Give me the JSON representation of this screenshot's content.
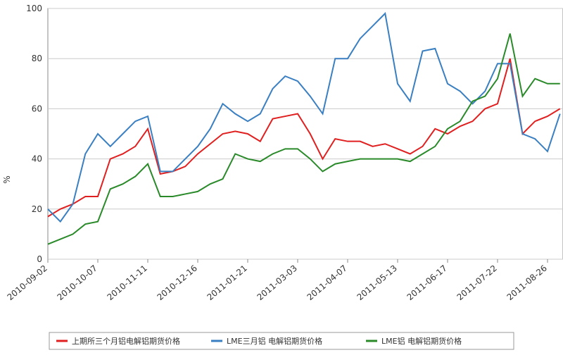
{
  "chart_data": {
    "type": "line",
    "y_label": "%",
    "categories": [
      "2010-09-02",
      null,
      null,
      null,
      "2010-10-07",
      null,
      null,
      null,
      "2010-11-11",
      null,
      null,
      null,
      "2010-12-16",
      null,
      null,
      null,
      "2011-01-21",
      null,
      null,
      null,
      "2011-03-03",
      null,
      null,
      null,
      "2011-04-07",
      null,
      null,
      null,
      "2011-05-13",
      null,
      null,
      null,
      "2011-06-17",
      null,
      null,
      null,
      "2011-07-22",
      null,
      null,
      null,
      "2011-08-26",
      null
    ],
    "series": [
      {
        "name": "上期所三个月铝电解铝期货价格",
        "color": "#e02020",
        "values": [
          17,
          20,
          22,
          25,
          25,
          40,
          42,
          45,
          52,
          34,
          35,
          37,
          42,
          46,
          50,
          51,
          50,
          47,
          56,
          57,
          58,
          50,
          40,
          48,
          47,
          47,
          45,
          46,
          44,
          42,
          45,
          52,
          50,
          53,
          55,
          60,
          62,
          80,
          50,
          55,
          57,
          60
        ]
      },
      {
        "name": "LME三月铝 电解铝期货价格",
        "color": "#3a7fc1",
        "values": [
          20,
          15,
          22,
          42,
          50,
          45,
          50,
          55,
          57,
          35,
          35,
          40,
          45,
          52,
          62,
          58,
          55,
          58,
          68,
          73,
          71,
          65,
          58,
          80,
          80,
          88,
          93,
          98,
          70,
          63,
          83,
          84,
          70,
          67,
          62,
          67,
          78,
          78,
          50,
          48,
          43,
          58
        ]
      },
      {
        "name": "LME铝 电解铝期货价格",
        "color": "#2a8a2a",
        "values": [
          6,
          8,
          10,
          14,
          15,
          28,
          30,
          33,
          38,
          25,
          25,
          26,
          27,
          30,
          32,
          42,
          40,
          39,
          42,
          44,
          44,
          40,
          35,
          38,
          39,
          40,
          40,
          40,
          40,
          39,
          42,
          45,
          52,
          55,
          63,
          65,
          72,
          90,
          65,
          72,
          70,
          70
        ]
      }
    ],
    "ylim": [
      0,
      100
    ],
    "yticks": [
      0,
      20,
      40,
      60,
      80,
      100
    ],
    "grid": true
  }
}
